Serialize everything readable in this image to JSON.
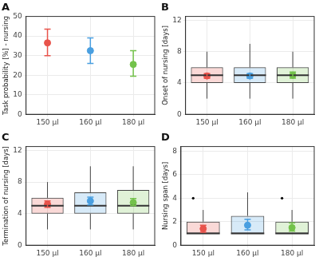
{
  "chart_data": [
    {
      "type": "point",
      "title": "A",
      "y_label": "Task probability [%] - nursing",
      "categories": [
        "150 µl",
        "160 µl",
        "180 µl"
      ],
      "values": [
        36.5,
        32.5,
        25.5
      ],
      "error_low": [
        30,
        26,
        19.5
      ],
      "error_high": [
        43.5,
        39,
        32.5
      ],
      "colors": [
        "#e8534b",
        "#4a9fe0",
        "#73c24a"
      ],
      "ylim": [
        0,
        50
      ],
      "yticks": [
        0,
        10,
        20,
        30,
        40,
        50
      ],
      "grid": true
    },
    {
      "type": "box",
      "title": "B",
      "y_label": "Onset of nursing [days]",
      "categories": [
        "150 µl",
        "160 µl",
        "180 µl"
      ],
      "boxes": [
        {
          "min": 2,
          "q1": 4,
          "median": 5,
          "q3": 6,
          "max": 8,
          "outliers": []
        },
        {
          "min": 2,
          "q1": 4,
          "median": 5,
          "q3": 6,
          "max": 9,
          "outliers": []
        },
        {
          "min": 2,
          "q1": 4,
          "median": 5,
          "q3": 6,
          "max": 8,
          "outliers": []
        }
      ],
      "means": [
        4.9,
        4.9,
        5.0
      ],
      "mean_low": [
        4.6,
        4.6,
        4.6
      ],
      "mean_high": [
        5.2,
        5.2,
        5.4
      ],
      "colors": [
        "#e8534b",
        "#4a9fe0",
        "#73c24a"
      ],
      "ylim": [
        0,
        12.5
      ],
      "yticks": [
        0,
        4,
        8,
        12
      ],
      "grid": true
    },
    {
      "type": "box",
      "title": "C",
      "y_label": "Termination of nursing [days]",
      "categories": [
        "150 µl",
        "160 µl",
        "180 µl"
      ],
      "boxes": [
        {
          "min": 2,
          "q1": 4,
          "median": 5,
          "q3": 6,
          "max": 8,
          "outliers": []
        },
        {
          "min": 2,
          "q1": 4,
          "median": 5,
          "q3": 6.7,
          "max": 10,
          "outliers": []
        },
        {
          "min": 2,
          "q1": 4,
          "median": 5,
          "q3": 7,
          "max": 10,
          "outliers": []
        }
      ],
      "means": [
        5.2,
        5.6,
        5.4
      ],
      "mean_low": [
        4.8,
        5.1,
        5.0
      ],
      "mean_high": [
        5.6,
        6.1,
        5.9
      ],
      "colors": [
        "#e8534b",
        "#4a9fe0",
        "#73c24a"
      ],
      "ylim": [
        0,
        12.5
      ],
      "yticks": [
        0,
        4,
        8,
        12
      ],
      "grid": true
    },
    {
      "type": "box",
      "title": "D",
      "y_label": "Nursing span [days]",
      "categories": [
        "150 µl",
        "160 µl",
        "180 µl"
      ],
      "boxes": [
        {
          "min": 1,
          "q1": 1,
          "median": 1,
          "q3": 2,
          "max": 3,
          "outliers": [
            4
          ]
        },
        {
          "min": 1,
          "q1": 1,
          "median": 1,
          "q3": 2.5,
          "max": 4.5,
          "outliers": []
        },
        {
          "min": 1,
          "q1": 1,
          "median": 1,
          "q3": 2,
          "max": 3,
          "outliers": [
            4
          ]
        }
      ],
      "means": [
        1.4,
        1.7,
        1.5
      ],
      "mean_low": [
        1.1,
        1.3,
        1.2
      ],
      "mean_high": [
        1.7,
        2.2,
        1.9
      ],
      "colors": [
        "#e8534b",
        "#4a9fe0",
        "#73c24a"
      ],
      "ylim": [
        0,
        8.4
      ],
      "yticks": [
        0,
        2,
        4,
        6,
        8
      ],
      "grid": true
    }
  ]
}
